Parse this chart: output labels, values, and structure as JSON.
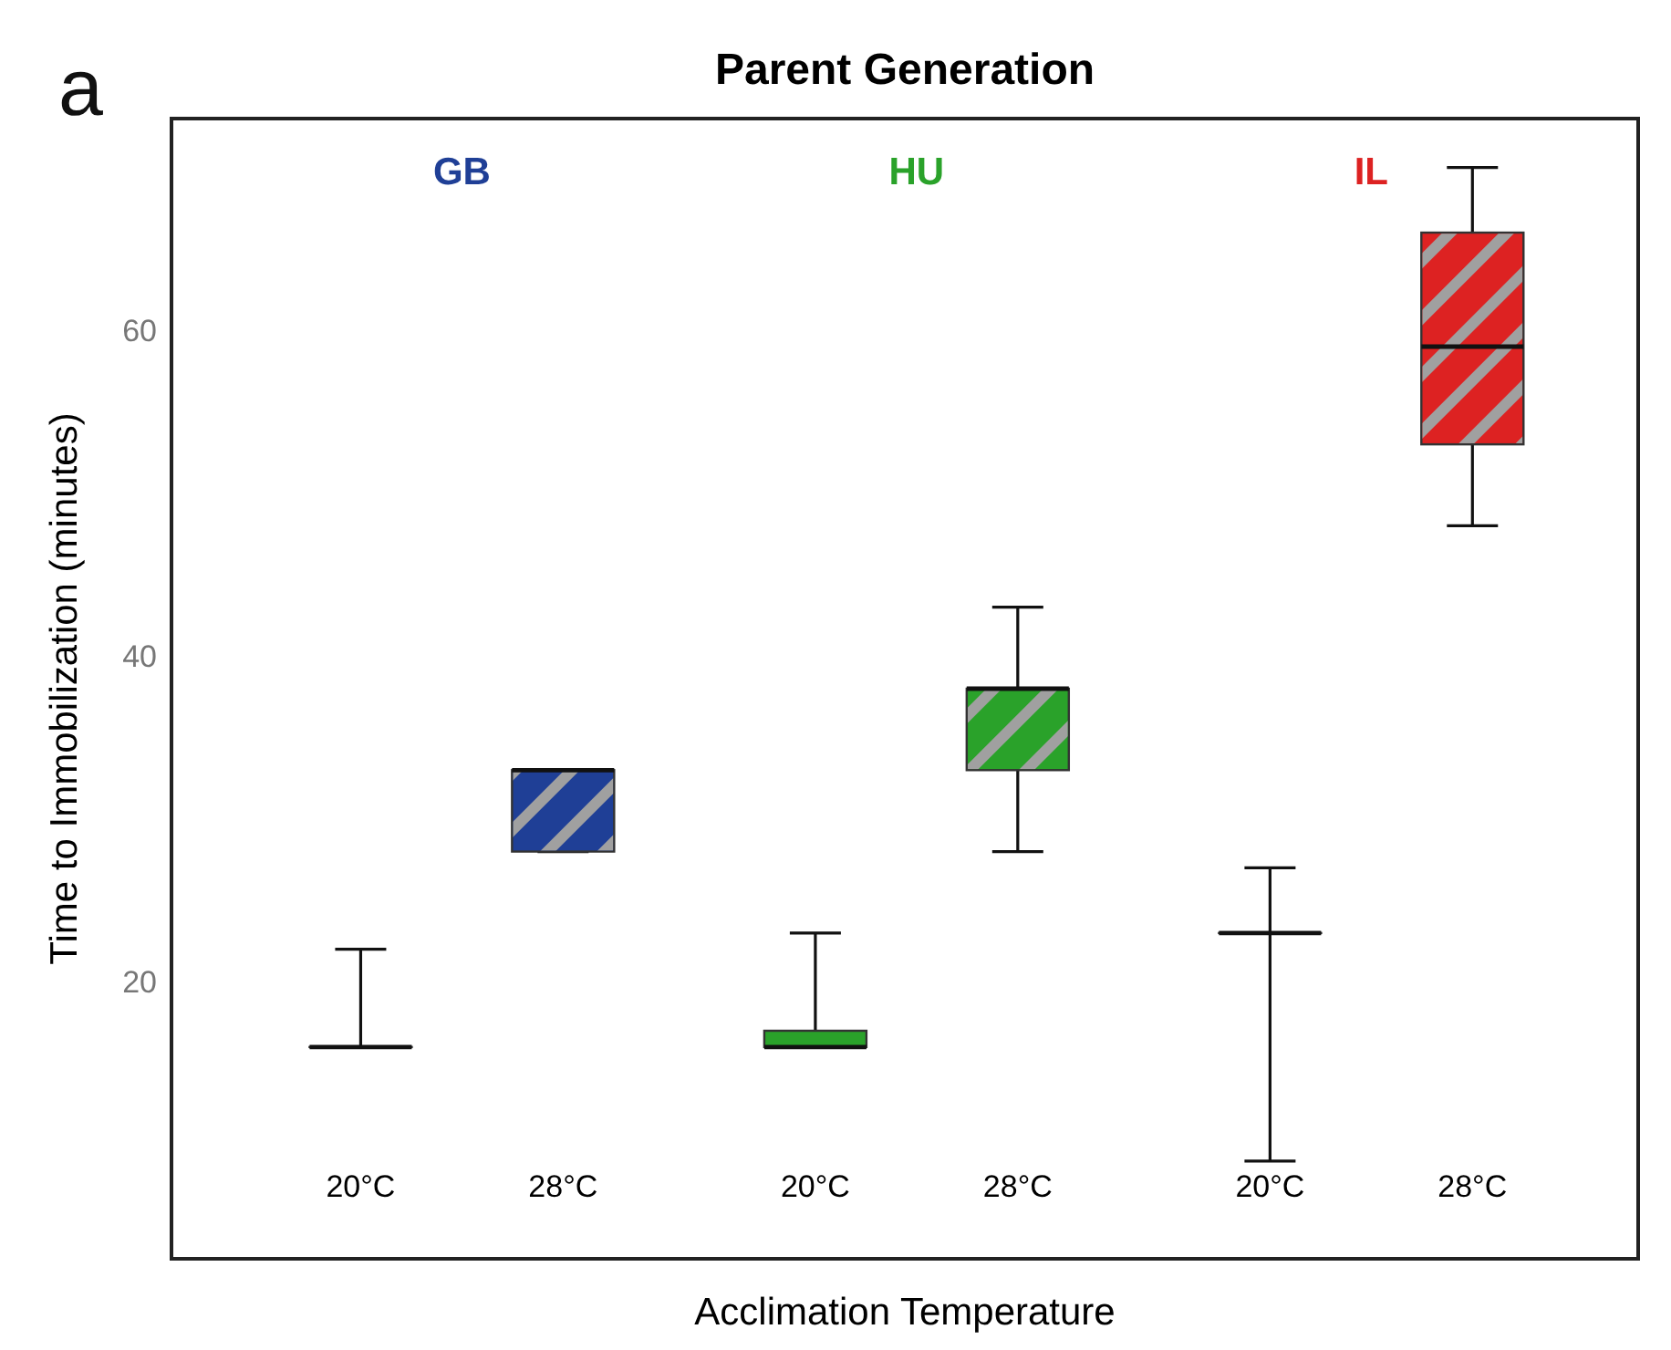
{
  "chart_data": {
    "type": "box",
    "title": "Parent Generation",
    "xlabel": "Acclimation Temperature",
    "ylabel": "Time to Immobilization (minutes)",
    "categories": [
      "20°C",
      "28°C",
      "20°C",
      "28°C",
      "20°C",
      "28°C"
    ],
    "ylim": [
      3,
      73
    ],
    "yticks": [
      20,
      40,
      60
    ],
    "grid": false,
    "annotations": [
      "a"
    ],
    "series": [
      {
        "name": "GB",
        "color": "#1f3f96",
        "boxes": [
          {
            "low": 16,
            "q1": 16,
            "median": 16,
            "q3": 16,
            "high": 22
          },
          {
            "low": 28,
            "q1": 28,
            "median": 33,
            "q3": 33,
            "high": 33
          },
          null,
          null,
          null,
          null
        ]
      },
      {
        "name": "HU",
        "color": "#2aa22a",
        "boxes": [
          null,
          null,
          {
            "low": 16,
            "q1": 16,
            "median": 16,
            "q3": 17,
            "high": 23
          },
          {
            "low": 28,
            "q1": 33,
            "median": 38,
            "q3": 38,
            "high": 43
          },
          null,
          null
        ]
      },
      {
        "name": "IL",
        "color": "#dd2222",
        "boxes": [
          null,
          null,
          null,
          null,
          {
            "low": 9,
            "q1": 23,
            "median": 23,
            "q3": 23,
            "high": 27
          },
          {
            "low": 48,
            "q1": 53,
            "median": 59,
            "q3": 66,
            "high": 70
          }
        ]
      }
    ]
  }
}
